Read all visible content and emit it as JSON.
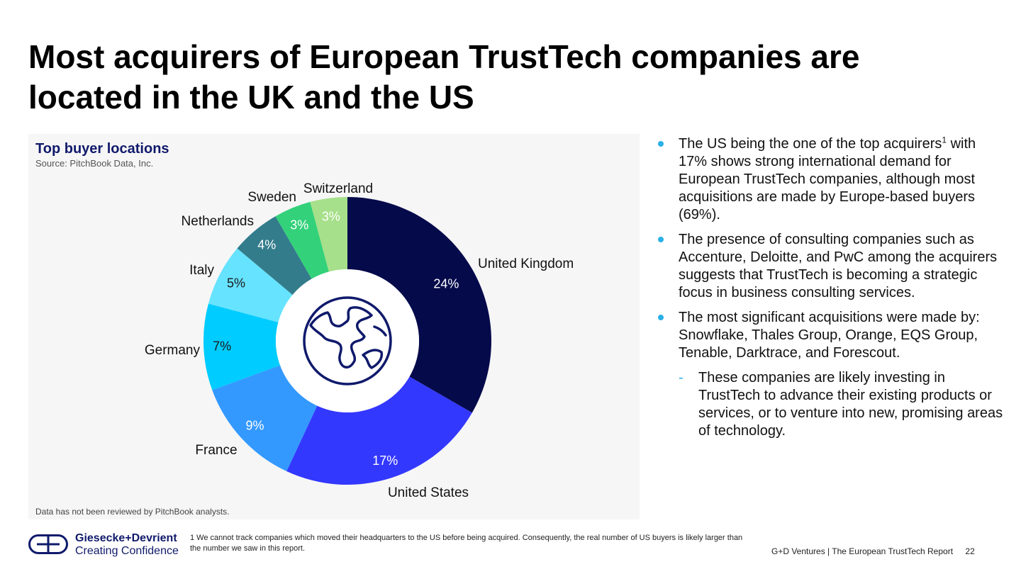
{
  "page": {
    "title": "Most acquirers of European TrustTech companies are located in the UK and the US"
  },
  "chart_data": {
    "type": "pie",
    "title": "Top buyer locations",
    "source": "Source: PitchBook Data, Inc.",
    "note": "Data has not been reviewed by PitchBook analysts.",
    "categories": [
      "United Kingdom",
      "United States",
      "France",
      "Germany",
      "Italy",
      "Netherlands",
      "Sweden",
      "Switzerland"
    ],
    "values": [
      24,
      17,
      9,
      7,
      5,
      4,
      3,
      3
    ],
    "value_labels": [
      "24%",
      "17%",
      "9%",
      "7%",
      "5%",
      "4%",
      "3%",
      "3%"
    ],
    "colors": [
      "#050a4b",
      "#3338ff",
      "#3399ff",
      "#00ccff",
      "#66e3ff",
      "#337c8c",
      "#33d17a",
      "#a6e08a"
    ],
    "center_icon": "globe-icon"
  },
  "bullets": [
    {
      "text": "The US being the one of the top acquirers",
      "sup": "1",
      "text2": " with 17% shows strong international demand for European TrustTech companies, although most acquisitions are made by Europe-based buyers (69%)."
    },
    {
      "text": "The presence of consulting companies such as Accenture, Deloitte, and PwC among the acquirers suggests that TrustTech is becoming a strategic focus in business consulting services."
    },
    {
      "text": "The most significant acquisitions were made by: Snowflake, Thales Group, Orange, EQS Group, Tenable, Darktrace, and Forescout."
    }
  ],
  "sub_bullet": {
    "marker": "-",
    "text": "These companies are likely investing in TrustTech to advance their existing products or services, or to venture into new, promising areas of technology."
  },
  "footer": {
    "brand_line1": "Giesecke+Devrient",
    "brand_line2": "Creating Confidence",
    "footnote": "1 We cannot track companies which moved their headquarters to the US before being acquired. Consequently, the real number of US buyers is likely larger than the number we saw in this report.",
    "report": "G+D Ventures  |  The European TrustTech Report",
    "page_number": "22"
  }
}
